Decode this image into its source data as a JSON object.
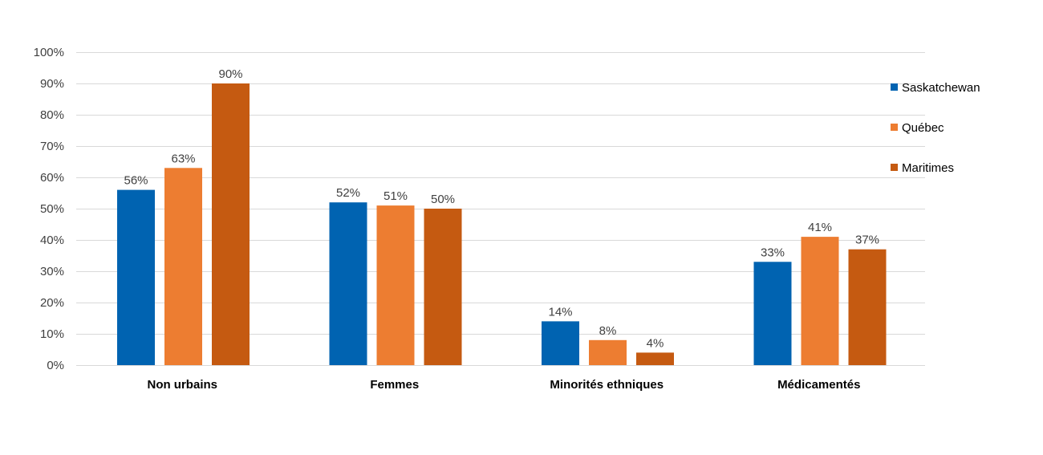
{
  "chart_data": {
    "type": "bar",
    "title": "",
    "xlabel": "",
    "ylabel": "",
    "categories": [
      "Non urbains",
      "Femmes",
      "Minorités ethniques",
      "Médicamentés"
    ],
    "series": [
      {
        "name": "Saskatchewan",
        "color": "#0063B1",
        "values": [
          56,
          52,
          14,
          33
        ],
        "labels": [
          "56%",
          "52%",
          "14%",
          "33%"
        ]
      },
      {
        "name": "Québec",
        "color": "#ED7D31",
        "values": [
          63,
          51,
          8,
          41
        ],
        "labels": [
          "63%",
          "51%",
          "8%",
          "41%"
        ]
      },
      {
        "name": "Maritimes",
        "color": "#C55A11",
        "values": [
          90,
          50,
          4,
          37
        ],
        "labels": [
          "90%",
          "50%",
          "4%",
          "37%"
        ]
      }
    ],
    "ylim": [
      0,
      100
    ],
    "yticks": [
      "0%",
      "10%",
      "20%",
      "30%",
      "40%",
      "50%",
      "60%",
      "70%",
      "80%",
      "90%",
      "100%"
    ],
    "grid": true,
    "legend_position": "right"
  }
}
